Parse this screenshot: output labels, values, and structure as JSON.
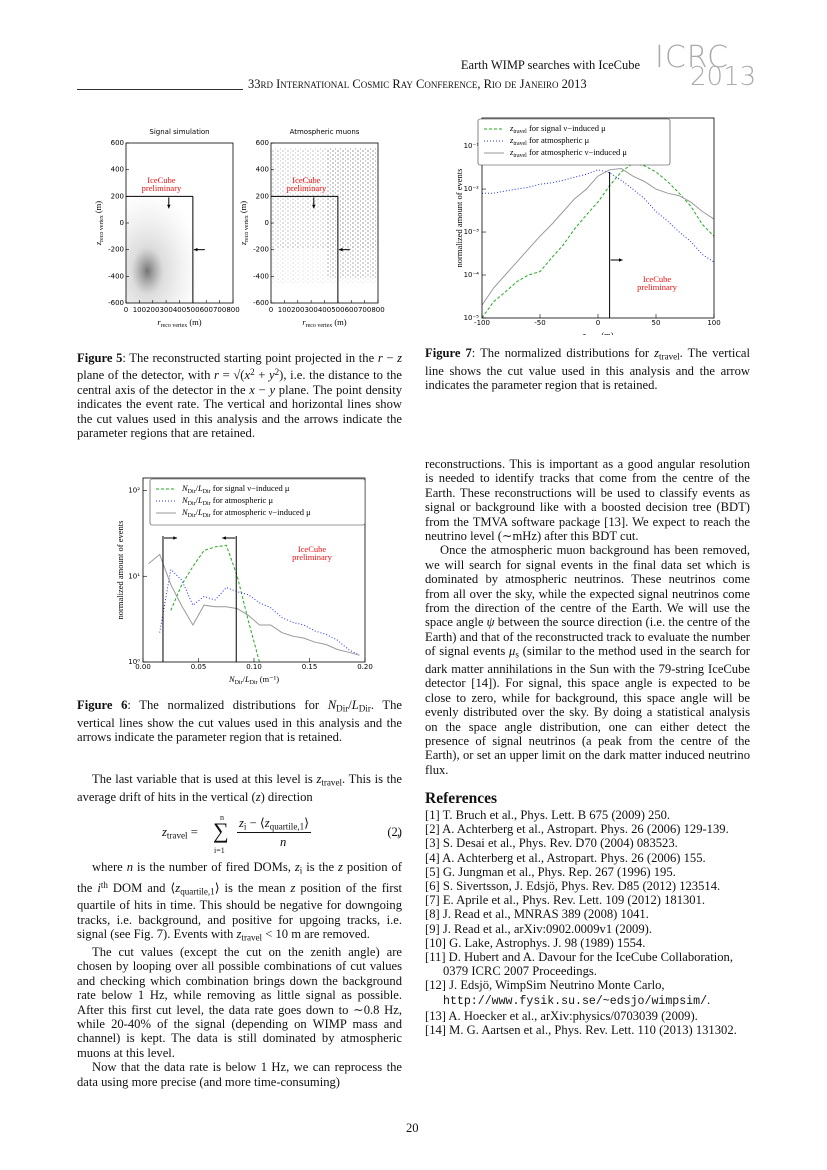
{
  "header": {
    "title": "Earth WIMP searches with IceCube",
    "conference": "33rd International Cosmic Ray Conference, Rio de Janeiro 2013",
    "logo_top": "ICRC",
    "logo_bottom": "2013"
  },
  "figure5": {
    "panels": [
      {
        "title": "Signal simulation",
        "annotation": [
          "IceCube",
          "preliminary"
        ]
      },
      {
        "title": "Atmospheric muons",
        "annotation": [
          "IceCube",
          "preliminary"
        ]
      }
    ],
    "xlim": [
      0,
      800
    ],
    "xticks": [
      0,
      100,
      200,
      300,
      400,
      500,
      600,
      700,
      800
    ],
    "ylim": [
      -600,
      600
    ],
    "yticks": [
      -600,
      -400,
      -200,
      0,
      200,
      400,
      600
    ],
    "xlabel": [
      {
        "i": "r"
      },
      {
        "sub": "reco vertex"
      },
      " (m)"
    ],
    "ylabel": [
      {
        "i": "z"
      },
      {
        "sub": "reco vertex"
      },
      " (m)"
    ],
    "cut_r": 500,
    "cut_z": 200,
    "caption": [
      {
        "b": "Figure 5"
      },
      ": The reconstructed starting point projected in the ",
      {
        "i": "r"
      },
      " − ",
      {
        "i": "z"
      },
      " plane of the detector, with ",
      {
        "i": "r"
      },
      " = √(",
      {
        "i": "x"
      },
      {
        "sup": "2"
      },
      " + ",
      {
        "i": "y"
      },
      {
        "sup": "2"
      },
      "), i.e. the distance to the central axis of the detector in the ",
      {
        "i": "x"
      },
      " − ",
      {
        "i": "y"
      },
      " plane. The point density indicates the event rate. The vertical and horizontal lines show the cut values used in this analysis and the arrows indicate the parameter regions that are retained."
    ]
  },
  "figure6": {
    "type": "line",
    "ylog": true,
    "xlim": [
      0,
      0.2
    ],
    "ylim": [
      1,
      140
    ],
    "xticks": [
      {
        "value": 0,
        "label": "0.00"
      },
      {
        "value": 0.05,
        "label": "0.05"
      },
      {
        "value": 0.1,
        "label": "0.10"
      },
      {
        "value": 0.15,
        "label": "0.15"
      },
      {
        "value": 0.2,
        "label": "0.20"
      }
    ],
    "yticks": [
      {
        "value": 1,
        "label": "10⁰"
      },
      {
        "value": 10,
        "label": "10¹"
      },
      {
        "value": 100,
        "label": "10²"
      }
    ],
    "xlabel": [
      {
        "i": "N"
      },
      {
        "sub": "Dir"
      },
      "/",
      {
        "i": "L"
      },
      {
        "sub": "Dir"
      },
      " (m⁻¹)"
    ],
    "ylabel": "normalized amount of events",
    "annotation": [
      "IceCube",
      "preliminary"
    ],
    "cuts": [
      0.018,
      0.084
    ],
    "x": [
      0.005,
      0.015,
      0.025,
      0.035,
      0.045,
      0.055,
      0.065,
      0.075,
      0.085,
      0.095,
      0.105,
      0.115,
      0.125,
      0.135,
      0.145,
      0.155,
      0.165,
      0.175,
      0.185,
      0.195
    ],
    "series": [
      {
        "name": [
          {
            "i": "N"
          },
          {
            "sub": "Dir"
          },
          "/",
          {
            "i": "L"
          },
          {
            "sub": "Dir"
          },
          " for signal ν−induced μ"
        ],
        "color": "#22aa22",
        "dash": "3,2",
        "values": [
          null,
          null,
          4,
          8,
          13,
          20,
          22,
          23,
          10,
          3,
          1,
          null,
          null,
          null,
          null,
          null,
          null,
          null,
          null,
          null
        ]
      },
      {
        "name": [
          {
            "i": "N"
          },
          {
            "sub": "Dir"
          },
          "/",
          {
            "i": "L"
          },
          {
            "sub": "Dir"
          },
          " for atmospheric μ"
        ],
        "color": "#2233ee",
        "dash": "1,2",
        "values": [
          null,
          2.2,
          12,
          9,
          4.6,
          5.8,
          5.3,
          7.4,
          6.6,
          6.1,
          4.9,
          4.3,
          3.3,
          2.9,
          2.7,
          2.3,
          2.1,
          1.8,
          1.4,
          1.2
        ]
      },
      {
        "name": [
          {
            "i": "N"
          },
          {
            "sub": "Dir"
          },
          "/",
          {
            "i": "L"
          },
          {
            "sub": "Dir"
          },
          " for atmospheric ν−induced μ"
        ],
        "color": "#999999",
        "dash": "",
        "values": [
          14,
          18,
          8,
          4.5,
          2.7,
          4.6,
          4.4,
          4.4,
          4.2,
          3.5,
          2.7,
          2.7,
          2.2,
          2.0,
          1.9,
          1.7,
          1.6,
          1.4,
          1.3,
          1.2
        ]
      }
    ],
    "caption": [
      {
        "b": "Figure 6"
      },
      ": The normalized distributions for ",
      {
        "i": "N"
      },
      {
        "sub": "Dir"
      },
      "/",
      {
        "i": "L"
      },
      {
        "sub": "Dir"
      },
      ". The vertical lines show the cut values used in this analysis and the arrows indicate the parameter region that is retained."
    ]
  },
  "figure7": {
    "type": "line",
    "ylog": true,
    "xlim": [
      -100,
      100
    ],
    "ylim": [
      1e-05,
      0.45
    ],
    "xticks": [
      -100,
      -50,
      0,
      50,
      100
    ],
    "yticks": [
      {
        "value": 1e-05,
        "label": "10⁻⁵"
      },
      {
        "value": 0.0001,
        "label": "10⁻⁴"
      },
      {
        "value": 0.001,
        "label": "10⁻³"
      },
      {
        "value": 0.01,
        "label": "10⁻²"
      },
      {
        "value": 0.1,
        "label": "10⁻¹"
      }
    ],
    "xlabel": [
      {
        "i": "z"
      },
      {
        "sub": "travel"
      },
      " (m)"
    ],
    "ylabel": "normalized amount of events",
    "annotation": [
      "IceCube",
      "preliminary"
    ],
    "cut": 10,
    "x": [
      -100,
      -90,
      -80,
      -70,
      -60,
      -50,
      -40,
      -30,
      -20,
      -10,
      0,
      10,
      20,
      30,
      40,
      50,
      60,
      70,
      80,
      90,
      100
    ],
    "series": [
      {
        "name": [
          {
            "i": "z"
          },
          {
            "sub": "travel"
          },
          " for signal ν−induced μ"
        ],
        "color": "#22aa22",
        "dash": "3,2",
        "values": [
          1e-05,
          2.4e-05,
          4e-05,
          7e-05,
          0.0001,
          0.00012,
          0.00025,
          0.0005,
          0.0012,
          0.0025,
          0.005,
          0.012,
          0.025,
          0.04,
          0.035,
          0.025,
          0.015,
          0.008,
          0.004,
          0.0015,
          0.0008
        ]
      },
      {
        "name": [
          {
            "i": "z"
          },
          {
            "sub": "travel"
          },
          " for atmospheric μ"
        ],
        "color": "#2233ee",
        "dash": "1,2",
        "values": [
          0.008,
          0.008,
          0.009,
          0.01,
          0.011,
          0.013,
          0.014,
          0.016,
          0.019,
          0.022,
          0.028,
          0.024,
          0.016,
          0.01,
          0.006,
          0.003,
          0.0018,
          0.001,
          0.0006,
          0.0003,
          0.0002
        ]
      },
      {
        "name": [
          {
            "i": "z"
          },
          {
            "sub": "travel"
          },
          " for atmospheric ν−induced μ"
        ],
        "color": "#999999",
        "dash": "",
        "values": [
          2e-05,
          5e-05,
          0.0001,
          0.0002,
          0.0004,
          0.0008,
          0.0015,
          0.003,
          0.006,
          0.01,
          0.02,
          0.028,
          0.03,
          0.02,
          0.015,
          0.01,
          0.008,
          0.007,
          0.005,
          0.003,
          0.002
        ]
      }
    ],
    "caption": [
      {
        "b": "Figure 7"
      },
      ": The normalized distributions for ",
      {
        "i": "z"
      },
      {
        "sub": "travel"
      },
      ". The vertical line shows the cut value used in this analysis and the arrow indicates the parameter region that is retained."
    ]
  },
  "left": {
    "p1": [
      "The last variable that is used at this level is ",
      {
        "i": "z"
      },
      {
        "sub": "travel"
      },
      ". This is the average drift of hits in the vertical (",
      {
        "i": "z"
      },
      ") direction"
    ],
    "equation": {
      "lhs": [
        {
          "i": "z"
        },
        {
          "sub": "travel"
        },
        " = "
      ],
      "sum": "∑",
      "top": "n",
      "bottom": "i=1",
      "numerator": [
        {
          "i": "z"
        },
        {
          "sub": "i"
        },
        " − ⟨",
        {
          "i": "z"
        },
        {
          "sub": "quartile,1"
        },
        "⟩"
      ],
      "denominator": "n",
      "trail": ",",
      "number": "(2)"
    },
    "paragraphs": [
      [
        "where ",
        {
          "i": "n"
        },
        " is the number of fired DOMs, ",
        {
          "i": "z"
        },
        {
          "sub": "i"
        },
        " is the ",
        {
          "i": "z"
        },
        " position of the ",
        {
          "i": "i"
        },
        {
          "sup": "th"
        },
        " DOM and ⟨",
        {
          "i": "z"
        },
        {
          "sub": "quartile,1"
        },
        "⟩ is the mean ",
        {
          "i": "z"
        },
        " position of the first quartile of hits in time. This should be negative for downgoing tracks, i.e. background, and positive for upgoing tracks, i.e. signal (see Fig. 7). Events with ",
        {
          "i": "z"
        },
        {
          "sub": "travel"
        },
        " < 10 m are removed."
      ],
      [
        "The cut values (except the cut on the zenith angle) are chosen by looping over all possible combinations of cut values and checking which combination brings down the background rate below 1 Hz, while removing as little signal as possible. After this first cut level, the data rate goes down to ∼0.8 Hz, while 20-40% of the signal (depending on WIMP mass and channel) is kept. The data is still dominated by atmospheric muons at this level."
      ],
      [
        "Now that the data rate is below 1 Hz, we can reprocess the data using more precise (and more time-consuming)"
      ]
    ]
  },
  "right": {
    "paragraphs": [
      [
        "reconstructions. This is important as a good angular resolution is needed to identify tracks that come from the centre of the Earth. These reconstructions will be used to classify events as signal or background like with a boosted decision tree (BDT) from the TMVA software package [13]. We expect to reach the neutrino level (∼mHz) after this BDT cut."
      ],
      [
        "Once the atmospheric muon background has been removed, we will search for signal events in the final data set which is dominated by atmospheric neutrinos. These neutrinos come from all over the sky, while the expected signal neutrinos come from the direction of the centre of the Earth. We will use the space angle ",
        {
          "i": "ψ"
        },
        " between the source direction (i.e. the centre of the Earth) and that of the reconstructed track to evaluate the number of signal events ",
        {
          "i": "μ"
        },
        {
          "sub": "s"
        },
        " (similar to the method used in the search for dark matter annihilations in the Sun with the 79-string IceCube detector [14]). For signal, this space angle is expected to be close to zero, while for background, this space angle will be evenly distributed over the sky. By doing a statistical analysis on the space angle distribution, one can either detect the presence of signal neutrinos (a peak from the centre of the Earth), or set an upper limit on the dark matter induced neutrino flux."
      ]
    ]
  },
  "references": {
    "heading": "References",
    "items": [
      [
        "[1] T. Bruch et al., Phys. Lett. B 675 (2009) 250."
      ],
      [
        "[2] A. Achterberg et al., Astropart. Phys. 26 (2006) 129-139."
      ],
      [
        "[3] S. Desai et al., Phys. Rev. D70 (2004) 083523."
      ],
      [
        "[4] A. Achterberg et al., Astropart. Phys. 26 (2006) 155."
      ],
      [
        "[5] G. Jungman et al., Phys. Rep. 267 (1996) 195."
      ],
      [
        "[6] S. Sivertsson, J. Edsjö, Phys. Rev. D85 (2012) 123514."
      ],
      [
        "[7] E. Aprile et al., Phys. Rev. Lett. 109 (2012) 181301."
      ],
      [
        "[8] J. Read et al., MNRAS 389 (2008) 1041."
      ],
      [
        "[9] J. Read et al., arXiv:0902.0009v1 (2009)."
      ],
      [
        "[10] G. Lake, Astrophys. J. 98 (1989) 1554."
      ],
      [
        "[11] D. Hubert and A. Davour for the IceCube Collaboration, 0379 ICRC 2007 Proceedings."
      ],
      [
        "[12] J. Edsjö, WimpSim Neutrino Monte Carlo, ",
        {
          "tt": "http://www.fysik.su.se/~edsjo/wimpsim/"
        },
        "."
      ],
      [
        "[13] A. Hoecker et al., arXiv:physics/0703039 (2009)."
      ],
      [
        "[14] M. G. Aartsen et al., Phys. Rev. Lett. 110 (2013) 131302."
      ]
    ]
  },
  "page_number": "20"
}
